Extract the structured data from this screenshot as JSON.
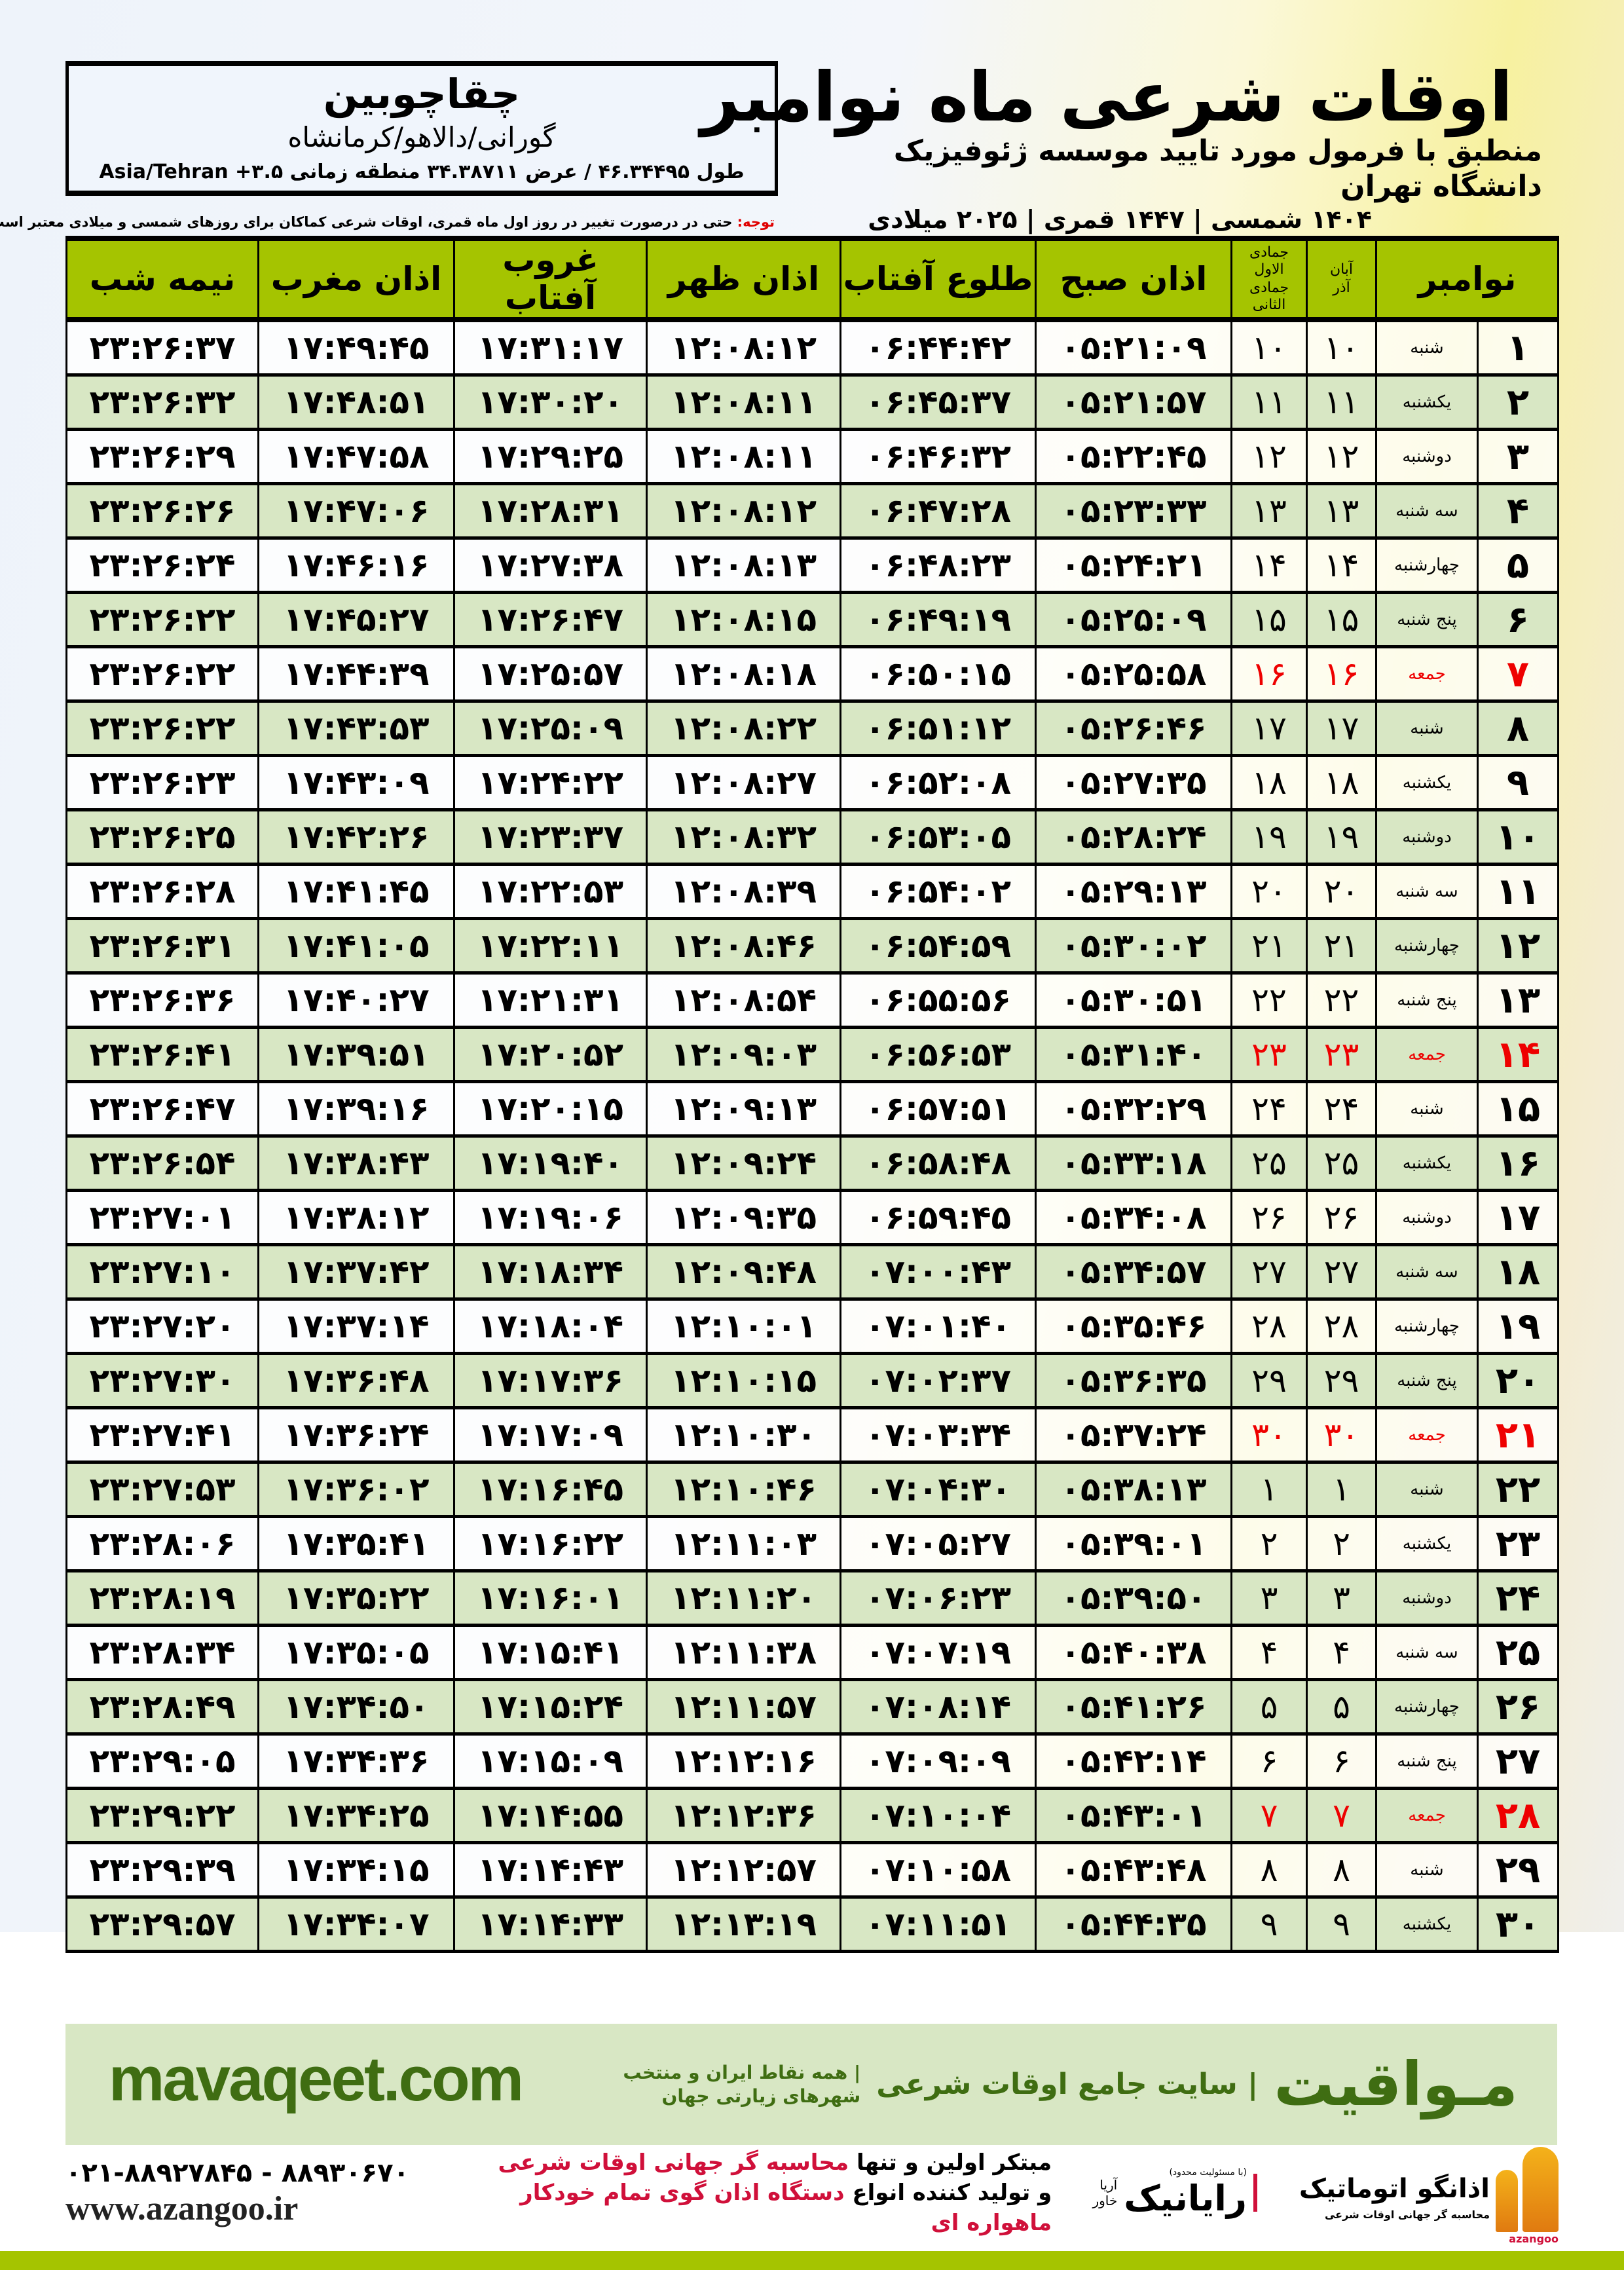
{
  "location": {
    "name": "چقاچوبین",
    "region": "گورانی/دالاهو/کرمانشاه",
    "coords": "طول ۴۶.۳۴۴۹۵ / عرض ۳۴.۳۸۷۱۱ منطقه زمانی ۳.۵+ Asia/Tehran"
  },
  "header": {
    "title": "اوقات شرعی ماه نوامبر",
    "subtitle": "منطبق با فرمول مورد تایید موسسه ژئوفیزیک دانشگاه تهران",
    "dates": "۱۴۰۴ شمسی | ۱۴۴۷ قمری | ۲۰۲۵ میلادی"
  },
  "note": {
    "label": "توجه:",
    "text": " حتی در درصورت تغییر در روز اول ماه قمری، اوقات شرعی کماکان برای روزهای شمسی و میلادی معتبر است."
  },
  "colors": {
    "header_green": "#a5c400",
    "row_green": "#d8e7c4",
    "friday_red": "#ee0000",
    "brand_green": "#3f6d12"
  },
  "table": {
    "headers": {
      "day": "نوامبر",
      "shamsi_top": "آبان",
      "shamsi_bottom": "آذر",
      "hijri_top": "جمادی الاول",
      "hijri_bottom": "جمادی الثانی",
      "sobh": "اذان صبح",
      "tolu": "طلوع آفتاب",
      "zohr": "اذان ظهر",
      "ghorub": "غروب آفتاب",
      "maghreb": "اذان مغرب",
      "nimeshab": "نیمه شب"
    },
    "rows": [
      [
        "۱",
        "شنبه",
        "۱۰",
        "۱۰",
        "۰۵:۲۱:۰۹",
        "۰۶:۴۴:۴۲",
        "۱۲:۰۸:۱۲",
        "۱۷:۳۱:۱۷",
        "۱۷:۴۹:۴۵",
        "۲۳:۲۶:۳۷"
      ],
      [
        "۲",
        "یکشنبه",
        "۱۱",
        "۱۱",
        "۰۵:۲۱:۵۷",
        "۰۶:۴۵:۳۷",
        "۱۲:۰۸:۱۱",
        "۱۷:۳۰:۲۰",
        "۱۷:۴۸:۵۱",
        "۲۳:۲۶:۳۲"
      ],
      [
        "۳",
        "دوشنبه",
        "۱۲",
        "۱۲",
        "۰۵:۲۲:۴۵",
        "۰۶:۴۶:۳۲",
        "۱۲:۰۸:۱۱",
        "۱۷:۲۹:۲۵",
        "۱۷:۴۷:۵۸",
        "۲۳:۲۶:۲۹"
      ],
      [
        "۴",
        "سه شنبه",
        "۱۳",
        "۱۳",
        "۰۵:۲۳:۳۳",
        "۰۶:۴۷:۲۸",
        "۱۲:۰۸:۱۲",
        "۱۷:۲۸:۳۱",
        "۱۷:۴۷:۰۶",
        "۲۳:۲۶:۲۶"
      ],
      [
        "۵",
        "چهارشنبه",
        "۱۴",
        "۱۴",
        "۰۵:۲۴:۲۱",
        "۰۶:۴۸:۲۳",
        "۱۲:۰۸:۱۳",
        "۱۷:۲۷:۳۸",
        "۱۷:۴۶:۱۶",
        "۲۳:۲۶:۲۴"
      ],
      [
        "۶",
        "پنج شنبه",
        "۱۵",
        "۱۵",
        "۰۵:۲۵:۰۹",
        "۰۶:۴۹:۱۹",
        "۱۲:۰۸:۱۵",
        "۱۷:۲۶:۴۷",
        "۱۷:۴۵:۲۷",
        "۲۳:۲۶:۲۲"
      ],
      [
        "۷",
        "جمعه",
        "۱۶",
        "۱۶",
        "۰۵:۲۵:۵۸",
        "۰۶:۵۰:۱۵",
        "۱۲:۰۸:۱۸",
        "۱۷:۲۵:۵۷",
        "۱۷:۴۴:۳۹",
        "۲۳:۲۶:۲۲"
      ],
      [
        "۸",
        "شنبه",
        "۱۷",
        "۱۷",
        "۰۵:۲۶:۴۶",
        "۰۶:۵۱:۱۲",
        "۱۲:۰۸:۲۲",
        "۱۷:۲۵:۰۹",
        "۱۷:۴۳:۵۳",
        "۲۳:۲۶:۲۲"
      ],
      [
        "۹",
        "یکشنبه",
        "۱۸",
        "۱۸",
        "۰۵:۲۷:۳۵",
        "۰۶:۵۲:۰۸",
        "۱۲:۰۸:۲۷",
        "۱۷:۲۴:۲۲",
        "۱۷:۴۳:۰۹",
        "۲۳:۲۶:۲۳"
      ],
      [
        "۱۰",
        "دوشنبه",
        "۱۹",
        "۱۹",
        "۰۵:۲۸:۲۴",
        "۰۶:۵۳:۰۵",
        "۱۲:۰۸:۳۲",
        "۱۷:۲۳:۳۷",
        "۱۷:۴۲:۲۶",
        "۲۳:۲۶:۲۵"
      ],
      [
        "۱۱",
        "سه شنبه",
        "۲۰",
        "۲۰",
        "۰۵:۲۹:۱۳",
        "۰۶:۵۴:۰۲",
        "۱۲:۰۸:۳۹",
        "۱۷:۲۲:۵۳",
        "۱۷:۴۱:۴۵",
        "۲۳:۲۶:۲۸"
      ],
      [
        "۱۲",
        "چهارشنبه",
        "۲۱",
        "۲۱",
        "۰۵:۳۰:۰۲",
        "۰۶:۵۴:۵۹",
        "۱۲:۰۸:۴۶",
        "۱۷:۲۲:۱۱",
        "۱۷:۴۱:۰۵",
        "۲۳:۲۶:۳۱"
      ],
      [
        "۱۳",
        "پنج شنبه",
        "۲۲",
        "۲۲",
        "۰۵:۳۰:۵۱",
        "۰۶:۵۵:۵۶",
        "۱۲:۰۸:۵۴",
        "۱۷:۲۱:۳۱",
        "۱۷:۴۰:۲۷",
        "۲۳:۲۶:۳۶"
      ],
      [
        "۱۴",
        "جمعه",
        "۲۳",
        "۲۳",
        "۰۵:۳۱:۴۰",
        "۰۶:۵۶:۵۳",
        "۱۲:۰۹:۰۳",
        "۱۷:۲۰:۵۲",
        "۱۷:۳۹:۵۱",
        "۲۳:۲۶:۴۱"
      ],
      [
        "۱۵",
        "شنبه",
        "۲۴",
        "۲۴",
        "۰۵:۳۲:۲۹",
        "۰۶:۵۷:۵۱",
        "۱۲:۰۹:۱۳",
        "۱۷:۲۰:۱۵",
        "۱۷:۳۹:۱۶",
        "۲۳:۲۶:۴۷"
      ],
      [
        "۱۶",
        "یکشنبه",
        "۲۵",
        "۲۵",
        "۰۵:۳۳:۱۸",
        "۰۶:۵۸:۴۸",
        "۱۲:۰۹:۲۴",
        "۱۷:۱۹:۴۰",
        "۱۷:۳۸:۴۳",
        "۲۳:۲۶:۵۴"
      ],
      [
        "۱۷",
        "دوشنبه",
        "۲۶",
        "۲۶",
        "۰۵:۳۴:۰۸",
        "۰۶:۵۹:۴۵",
        "۱۲:۰۹:۳۵",
        "۱۷:۱۹:۰۶",
        "۱۷:۳۸:۱۲",
        "۲۳:۲۷:۰۱"
      ],
      [
        "۱۸",
        "سه شنبه",
        "۲۷",
        "۲۷",
        "۰۵:۳۴:۵۷",
        "۰۷:۰۰:۴۳",
        "۱۲:۰۹:۴۸",
        "۱۷:۱۸:۳۴",
        "۱۷:۳۷:۴۲",
        "۲۳:۲۷:۱۰"
      ],
      [
        "۱۹",
        "چهارشنبه",
        "۲۸",
        "۲۸",
        "۰۵:۳۵:۴۶",
        "۰۷:۰۱:۴۰",
        "۱۲:۱۰:۰۱",
        "۱۷:۱۸:۰۴",
        "۱۷:۳۷:۱۴",
        "۲۳:۲۷:۲۰"
      ],
      [
        "۲۰",
        "پنج شنبه",
        "۲۹",
        "۲۹",
        "۰۵:۳۶:۳۵",
        "۰۷:۰۲:۳۷",
        "۱۲:۱۰:۱۵",
        "۱۷:۱۷:۳۶",
        "۱۷:۳۶:۴۸",
        "۲۳:۲۷:۳۰"
      ],
      [
        "۲۱",
        "جمعه",
        "۳۰",
        "۳۰",
        "۰۵:۳۷:۲۴",
        "۰۷:۰۳:۳۴",
        "۱۲:۱۰:۳۰",
        "۱۷:۱۷:۰۹",
        "۱۷:۳۶:۲۴",
        "۲۳:۲۷:۴۱"
      ],
      [
        "۲۲",
        "شنبه",
        "۱",
        "۱",
        "۰۵:۳۸:۱۳",
        "۰۷:۰۴:۳۰",
        "۱۲:۱۰:۴۶",
        "۱۷:۱۶:۴۵",
        "۱۷:۳۶:۰۲",
        "۲۳:۲۷:۵۳"
      ],
      [
        "۲۳",
        "یکشنبه",
        "۲",
        "۲",
        "۰۵:۳۹:۰۱",
        "۰۷:۰۵:۲۷",
        "۱۲:۱۱:۰۳",
        "۱۷:۱۶:۲۲",
        "۱۷:۳۵:۴۱",
        "۲۳:۲۸:۰۶"
      ],
      [
        "۲۴",
        "دوشنبه",
        "۳",
        "۳",
        "۰۵:۳۹:۵۰",
        "۰۷:۰۶:۲۳",
        "۱۲:۱۱:۲۰",
        "۱۷:۱۶:۰۱",
        "۱۷:۳۵:۲۲",
        "۲۳:۲۸:۱۹"
      ],
      [
        "۲۵",
        "سه شنبه",
        "۴",
        "۴",
        "۰۵:۴۰:۳۸",
        "۰۷:۰۷:۱۹",
        "۱۲:۱۱:۳۸",
        "۱۷:۱۵:۴۱",
        "۱۷:۳۵:۰۵",
        "۲۳:۲۸:۳۴"
      ],
      [
        "۲۶",
        "چهارشنبه",
        "۵",
        "۵",
        "۰۵:۴۱:۲۶",
        "۰۷:۰۸:۱۴",
        "۱۲:۱۱:۵۷",
        "۱۷:۱۵:۲۴",
        "۱۷:۳۴:۵۰",
        "۲۳:۲۸:۴۹"
      ],
      [
        "۲۷",
        "پنج شنبه",
        "۶",
        "۶",
        "۰۵:۴۲:۱۴",
        "۰۷:۰۹:۰۹",
        "۱۲:۱۲:۱۶",
        "۱۷:۱۵:۰۹",
        "۱۷:۳۴:۳۶",
        "۲۳:۲۹:۰۵"
      ],
      [
        "۲۸",
        "جمعه",
        "۷",
        "۷",
        "۰۵:۴۳:۰۱",
        "۰۷:۱۰:۰۴",
        "۱۲:۱۲:۳۶",
        "۱۷:۱۴:۵۵",
        "۱۷:۳۴:۲۵",
        "۲۳:۲۹:۲۲"
      ],
      [
        "۲۹",
        "شنبه",
        "۸",
        "۸",
        "۰۵:۴۳:۴۸",
        "۰۷:۱۰:۵۸",
        "۱۲:۱۲:۵۷",
        "۱۷:۱۴:۴۳",
        "۱۷:۳۴:۱۵",
        "۲۳:۲۹:۳۹"
      ],
      [
        "۳۰",
        "یکشنبه",
        "۹",
        "۹",
        "۰۵:۴۴:۳۵",
        "۰۷:۱۱:۵۱",
        "۱۲:۱۳:۱۹",
        "۱۷:۱۴:۳۳",
        "۱۷:۳۴:۰۷",
        "۲۳:۲۹:۵۷"
      ]
    ]
  },
  "banner": {
    "name": "مـواقیت",
    "tagline": "| سایت جامع اوقات شرعی",
    "desc": "| همه نقاط ایران و منتخب شهرهای زیارتی جهان",
    "url": "mavaqeet.com"
  },
  "footer": {
    "phone": "۰۲۱-۸۸۹۲۷۸۴۵ - ۸۸۹۳۰۶۷۰",
    "website": "www.azangoo.ir",
    "promo_line1_a": "مبتکر اولین و تنها ",
    "promo_line1_b": "محاسبه گر جهانی اوقات شرعی",
    "promo_line2_a": "و تولید کننده انواع ",
    "promo_line2_b": "دستگاه اذان گوی تمام خودکار ماهواره ای",
    "rayanik_small": "(با مسئولیت محدود)",
    "rayanik_name": "رایانیک",
    "rayanik_sub": "آریا خاور",
    "azangoo_name": "اذانگو اتوماتیک",
    "azangoo_sub": "محاسبه گر جهانی اوقات شرعی",
    "azangoo_latin": "azangoo"
  }
}
